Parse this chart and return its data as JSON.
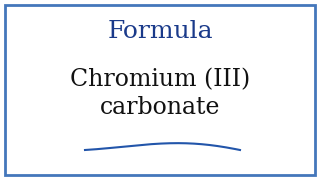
{
  "background_color": "#ffffff",
  "border_color": "#4477bb",
  "border_linewidth": 2.0,
  "title_text": "Formula",
  "title_color": "#1a3a8a",
  "title_fontsize": 18,
  "title_style": "normal",
  "title_weight": "normal",
  "main_line1": "Chromium (III)",
  "main_line2": "carbonate",
  "main_color": "#111111",
  "main_fontsize": 17,
  "main_weight": "normal",
  "curve_color": "#2255aa",
  "curve_linewidth": 1.5,
  "fig_width": 3.2,
  "fig_height": 1.8,
  "dpi": 100
}
